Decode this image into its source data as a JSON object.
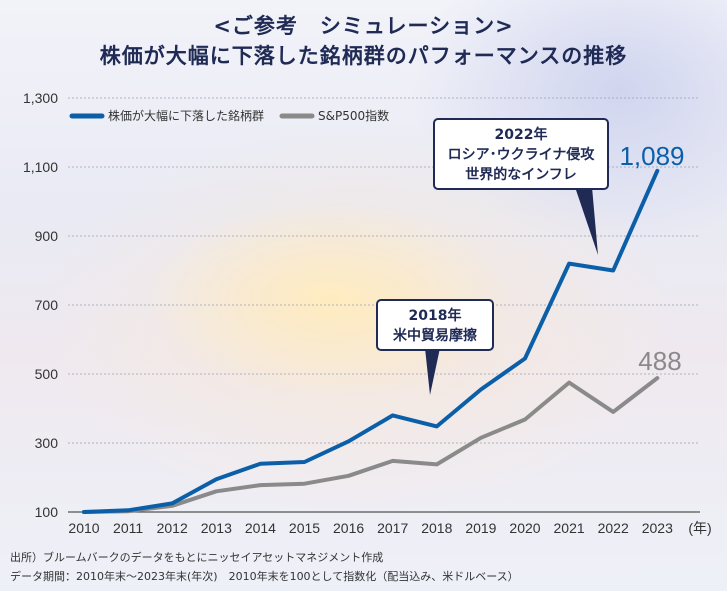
{
  "title_line1": "<ご参考　シミュレーション>",
  "title_line2": "株価が大幅に下落した銘柄群のパフォーマンスの推移",
  "footer": {
    "source": "出所）ブルームバークのデータをもとにニッセイアセットマネジメント作成",
    "period": "データ期間：2010年末～2023年末(年次)　2010年末を100として指数化（配当込み、米ドルベース）"
  },
  "chart_data": {
    "type": "line",
    "x": [
      2010,
      2011,
      2012,
      2013,
      2014,
      2015,
      2016,
      2017,
      2018,
      2019,
      2020,
      2021,
      2022,
      2023
    ],
    "x_tick_labels": [
      "2010",
      "2011",
      "2012",
      "2013",
      "2014",
      "2015",
      "2016",
      "2017",
      "2018",
      "2019",
      "2020",
      "2021",
      "2022",
      "2023"
    ],
    "x_unit_label": "(年)",
    "ylim": [
      100,
      1300
    ],
    "y_ticks": [
      100,
      300,
      500,
      700,
      900,
      1100,
      1300
    ],
    "y_tick_labels": [
      "100",
      "300",
      "500",
      "700",
      "900",
      "1,100",
      "1,300"
    ],
    "grid": true,
    "legend_position": "top-left",
    "series": [
      {
        "name": "株価が大幅に下落した銘柄群",
        "color": "#0b5fa8",
        "values": [
          100,
          105,
          125,
          195,
          240,
          245,
          305,
          380,
          348,
          455,
          545,
          820,
          800,
          1089
        ],
        "end_label": "1,089"
      },
      {
        "name": "S&P500指数",
        "color": "#8a8a8a",
        "values": [
          100,
          102,
          118,
          160,
          178,
          182,
          205,
          248,
          238,
          315,
          368,
          475,
          390,
          488
        ],
        "end_label": "488"
      }
    ],
    "annotations": [
      {
        "lines": [
          "2018年",
          "米中貿易摩擦"
        ],
        "x": 2018,
        "y": 348
      },
      {
        "lines": [
          "2022年",
          "ロシア･ウクライナ侵攻",
          "世界的なインフレ"
        ],
        "x": 2022,
        "y": 800
      }
    ]
  }
}
